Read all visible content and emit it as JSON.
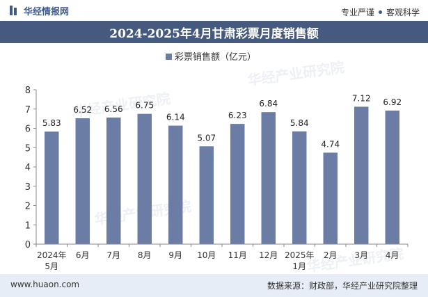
{
  "header": {
    "logo_text": "华经情报网",
    "tagline_left": "专业严谨",
    "tagline_right": "客观科学"
  },
  "watermark": "华经产业研究院",
  "footer": {
    "website": "www.huaon.com",
    "source": "数据来源：财政部，华经产业研究院整理"
  },
  "colors": {
    "bar": "#6b7ca5",
    "title_bg": "#465a80",
    "footer_bg": "#e7edf6"
  },
  "chart_data": {
    "type": "bar",
    "title": "2024-2025年4月甘肃彩票月度销售额",
    "categories": [
      "2024年5月",
      "6月",
      "7月",
      "8月",
      "9月",
      "10月",
      "11月",
      "12月",
      "2025年1月",
      "2月",
      "3月",
      "4月"
    ],
    "series": [
      {
        "name": "彩票销售额（亿元）",
        "values": [
          5.83,
          6.52,
          6.56,
          6.75,
          6.14,
          5.07,
          6.23,
          6.84,
          5.84,
          4.74,
          7.12,
          6.92
        ]
      }
    ],
    "xlabel": "",
    "ylabel": "",
    "ylim": [
      0,
      8
    ],
    "yticks": [
      0,
      1,
      2,
      3,
      4,
      5,
      6,
      7,
      8
    ],
    "legend": "top-center",
    "grid": false
  }
}
